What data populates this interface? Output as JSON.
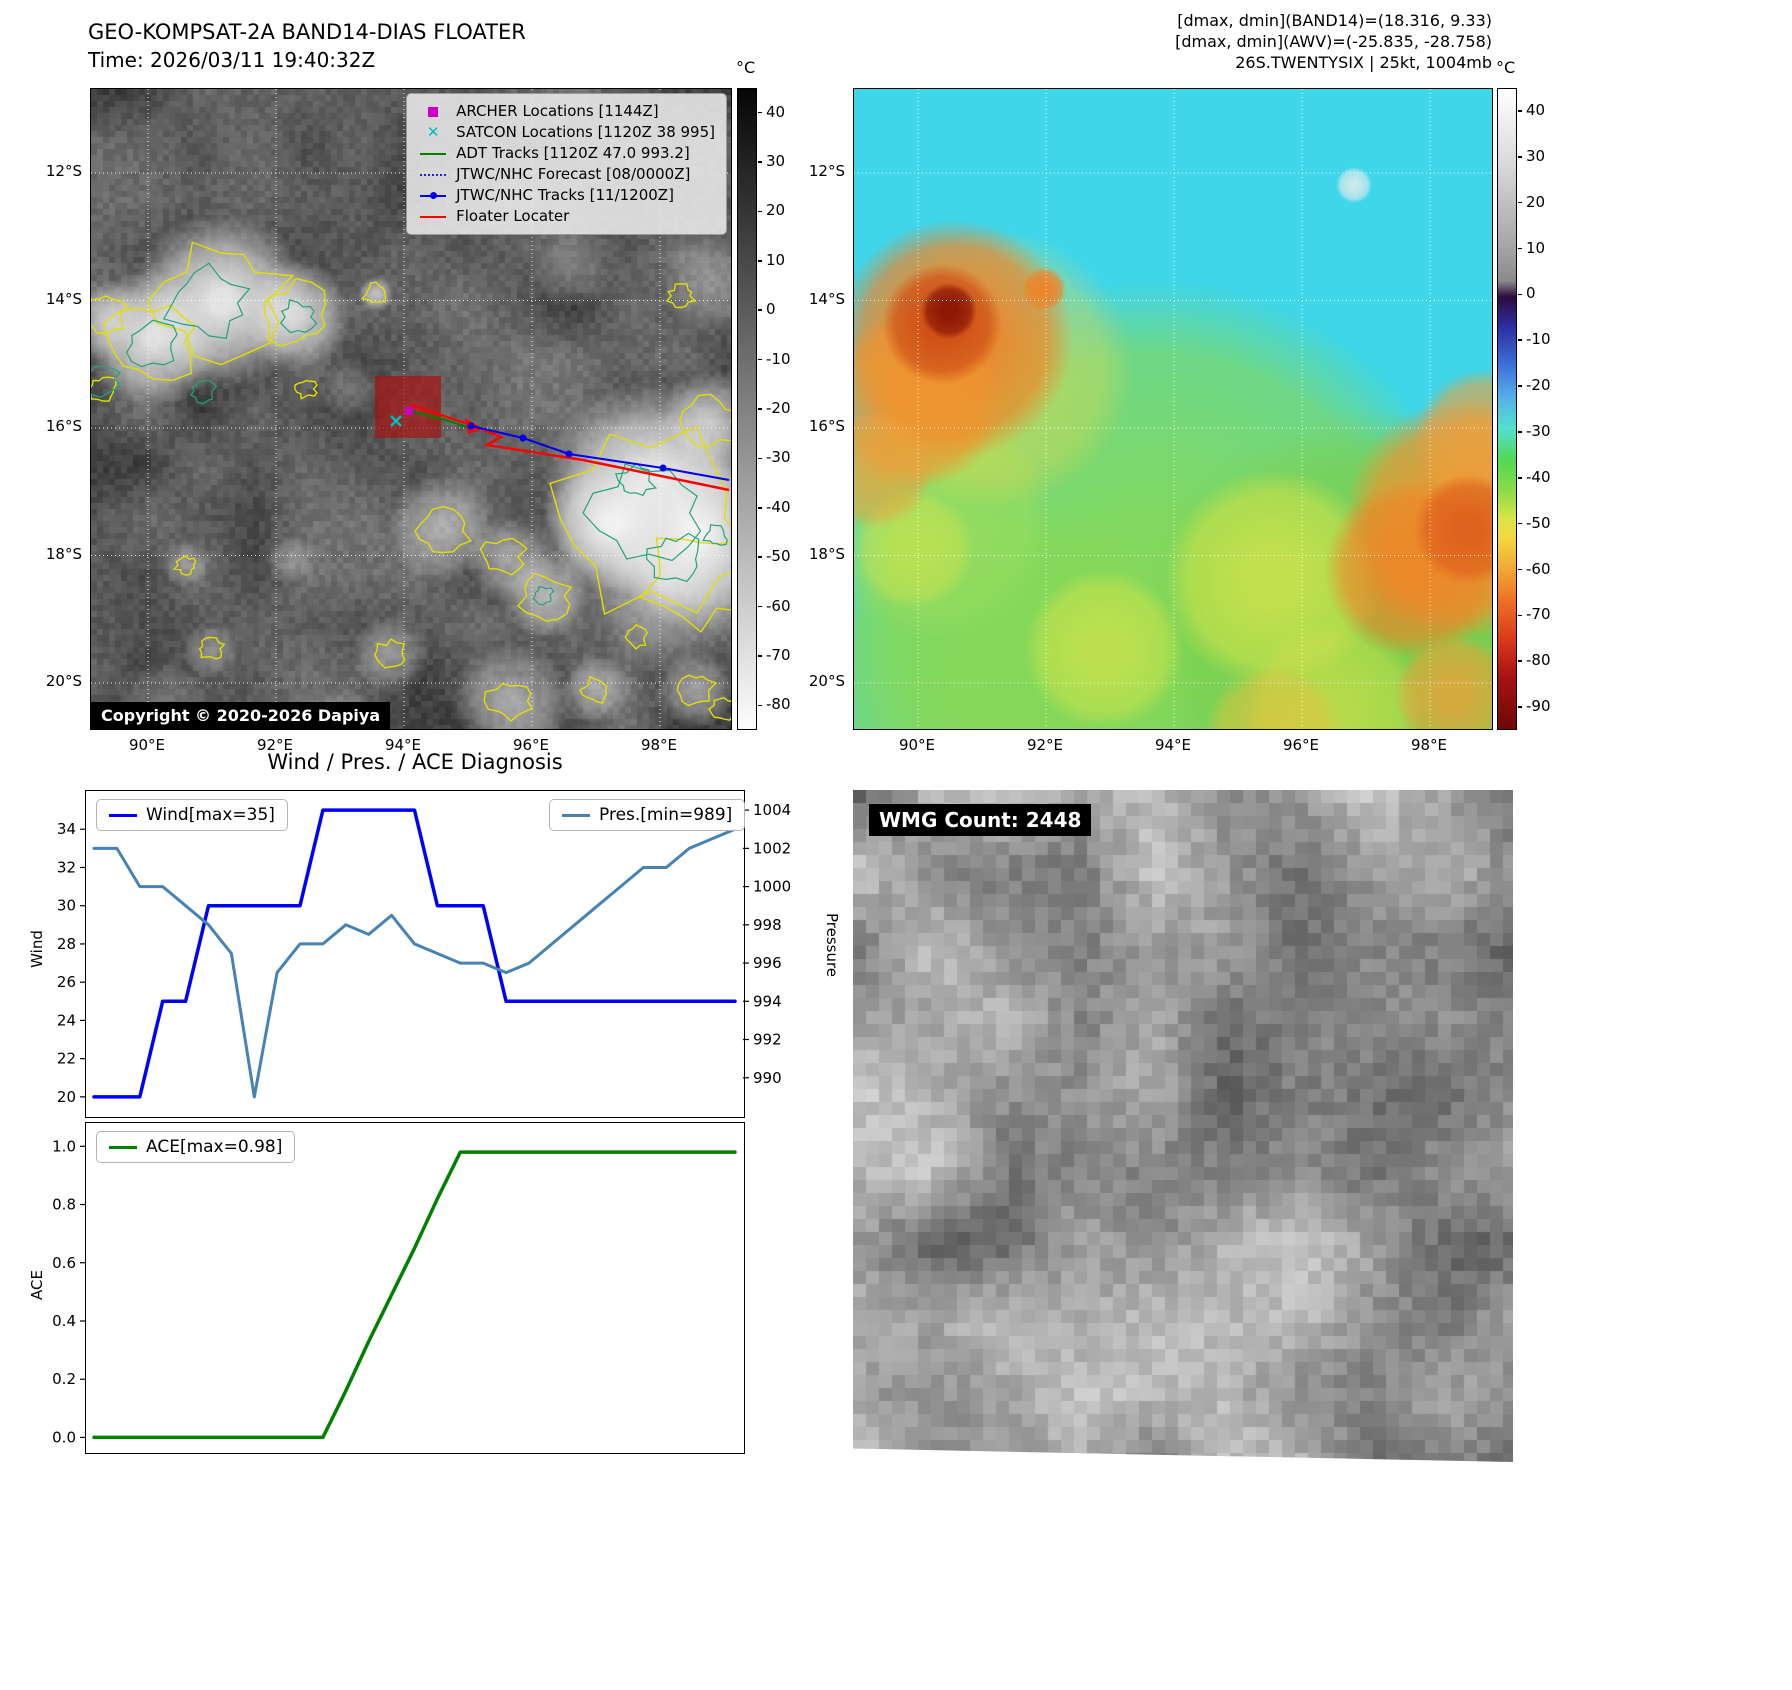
{
  "panel1": {
    "title": "GEO-KOMPSAT-2A BAND14-DIAS FLOATER",
    "time": "Time: 2026/03/11 19:40:32Z",
    "copyright": "Copyright © 2020-2026 Dapiya",
    "colorbar": {
      "unit": "°C",
      "ticks": [
        "40",
        "30",
        "20",
        "10",
        "0",
        "-10",
        "-20",
        "-30",
        "-40",
        "-50",
        "-60",
        "-70",
        "-80"
      ]
    },
    "axis": {
      "lat": [
        "12°S",
        "14°S",
        "16°S",
        "18°S",
        "20°S"
      ],
      "lon": [
        "90°E",
        "92°E",
        "94°E",
        "96°E",
        "98°E"
      ]
    },
    "legend": [
      {
        "marker": "square",
        "color": "#c800c8",
        "label": "ARCHER Locations [1144Z]"
      },
      {
        "marker": "x",
        "color": "#00bcbc",
        "label": "SATCON Locations [1120Z 38 995]"
      },
      {
        "marker": "line",
        "color": "#008000",
        "label": "ADT Tracks [1120Z 47.0 993.2]"
      },
      {
        "marker": "dotted",
        "color": "#2222ee",
        "label": "JTWC/NHC Forecast [08/0000Z]"
      },
      {
        "marker": "line-dot",
        "color": "#0000ee",
        "label": "JTWC/NHC Tracks [11/1200Z]"
      },
      {
        "marker": "line",
        "color": "#ff0000",
        "label": "Floater Locater"
      }
    ]
  },
  "panel2": {
    "header": [
      "[dmax, dmin](BAND14)=(18.316, 9.33)",
      "[dmax, dmin](AWV)=(-25.835, -28.758)",
      "26S.TWENTYSIX | 25kt, 1004mb"
    ],
    "colorbar": {
      "unit": "°C",
      "ticks": [
        "40",
        "30",
        "20",
        "10",
        "0",
        "-10",
        "-20",
        "-30",
        "-40",
        "-50",
        "-60",
        "-70",
        "-80",
        "-90"
      ]
    },
    "axis": {
      "lat": [
        "12°S",
        "14°S",
        "16°S",
        "18°S",
        "20°S"
      ],
      "lon": [
        "90°E",
        "92°E",
        "94°E",
        "96°E",
        "98°E"
      ]
    }
  },
  "diagnosis": {
    "title": "Wind / Pres. / ACE Diagnosis"
  },
  "chart_data": [
    {
      "type": "line",
      "title": "Wind / Pres. / ACE Diagnosis",
      "x": [
        0,
        1,
        2,
        3,
        4,
        5,
        6,
        7,
        8,
        9,
        10,
        11,
        12,
        13,
        14,
        15,
        16,
        17,
        18,
        19,
        20,
        21,
        22,
        23,
        24,
        25,
        26,
        27,
        28
      ],
      "series": [
        {
          "name": "Wind[max=35]",
          "color": "#0000ff",
          "axis": "left",
          "width": 3.5,
          "values": [
            20,
            20,
            20,
            25,
            25,
            30,
            30,
            30,
            30,
            30,
            35,
            35,
            35,
            35,
            35,
            30,
            30,
            30,
            25,
            25,
            25,
            25,
            25,
            25,
            25,
            25,
            25,
            25,
            25
          ]
        },
        {
          "name": "Pres.[min=989]",
          "color": "#4682b4",
          "axis": "right",
          "width": 3,
          "values": [
            1002,
            1002,
            1000,
            1000,
            999,
            998,
            996.5,
            989,
            995.5,
            997,
            997,
            998,
            997.5,
            998.5,
            997,
            996.5,
            996,
            996,
            995.5,
            996,
            997,
            998,
            999,
            1000,
            1001,
            1001,
            1002,
            1002.5,
            1003
          ]
        }
      ],
      "left_axis": {
        "label": "Wind",
        "ticks": [
          20,
          22,
          24,
          26,
          28,
          30,
          32,
          34
        ],
        "range": [
          19,
          36
        ]
      },
      "right_axis": {
        "label": "Pressure",
        "ticks": [
          990,
          992,
          994,
          996,
          998,
          1000,
          1002,
          1004
        ],
        "range": [
          988,
          1005
        ]
      },
      "legend_position": {
        "wind": "top-left",
        "pressure": "top-right"
      },
      "grid": false
    },
    {
      "type": "line",
      "x": [
        0,
        1,
        2,
        3,
        4,
        5,
        6,
        7,
        8,
        9,
        10,
        11,
        12,
        13,
        14,
        15,
        16,
        17,
        18,
        19,
        20,
        21,
        22,
        23,
        24,
        25,
        26,
        27,
        28
      ],
      "series": [
        {
          "name": "ACE[max=0.98]",
          "color": "#008000",
          "axis": "left",
          "width": 3.5,
          "values": [
            0,
            0,
            0,
            0,
            0,
            0,
            0,
            0,
            0,
            0,
            0,
            0.16,
            0.33,
            0.49,
            0.65,
            0.82,
            0.98,
            0.98,
            0.98,
            0.98,
            0.98,
            0.98,
            0.98,
            0.98,
            0.98,
            0.98,
            0.98,
            0.98,
            0.98
          ]
        }
      ],
      "left_axis": {
        "label": "ACE",
        "ticks": [
          "0.0",
          "0.2",
          "0.4",
          "0.6",
          "0.8",
          "1.0"
        ],
        "tick_values": [
          0,
          0.2,
          0.4,
          0.6,
          0.8,
          1.0
        ],
        "range": [
          -0.05,
          1.08
        ]
      },
      "legend_position": {
        "ace": "top-left"
      },
      "grid": false
    }
  ],
  "panel4": {
    "label": "WMG Count: 2448"
  }
}
